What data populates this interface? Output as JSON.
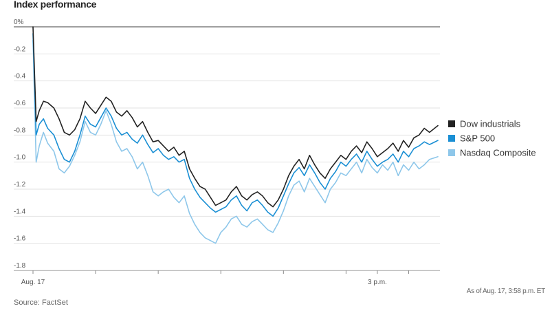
{
  "title": "Index performance",
  "source": "Source: FactSet",
  "as_of": "As of Aug. 17, 3:58 p.m. ET",
  "chart_data": {
    "type": "line",
    "title": "Index performance",
    "ylim": [
      -1.8,
      0
    ],
    "y_ticks": [
      0,
      -0.2,
      -0.4,
      -0.6,
      -0.8,
      -1.0,
      -1.2,
      -1.4,
      -1.6,
      -1.8
    ],
    "y_tick_labels": [
      "0%",
      "-0.2",
      "-0.4",
      "-0.6",
      "-0.8",
      "-1.0",
      "-1.2",
      "-1.4",
      "-1.6",
      "-1.8"
    ],
    "x_range": [
      "09:30",
      "16:00"
    ],
    "x_ticks": [
      "09:30",
      "10:30",
      "11:30",
      "12:30",
      "13:30",
      "14:30",
      "15:00",
      "15:30"
    ],
    "x_tick_labels": {
      "09:30": "Aug. 17",
      "15:00": "3 p.m."
    },
    "grid": true,
    "legend_position": "right",
    "series": [
      {
        "name": "Dow industrials",
        "color": "#222222",
        "x": [
          "09:30",
          "09:33",
          "09:36",
          "09:40",
          "09:44",
          "09:50",
          "09:55",
          "10:00",
          "10:05",
          "10:10",
          "10:15",
          "10:20",
          "10:25",
          "10:30",
          "10:35",
          "10:40",
          "10:45",
          "10:50",
          "10:55",
          "11:00",
          "11:05",
          "11:10",
          "11:15",
          "11:20",
          "11:25",
          "11:30",
          "11:35",
          "11:40",
          "11:45",
          "11:50",
          "11:55",
          "12:00",
          "12:05",
          "12:10",
          "12:15",
          "12:20",
          "12:25",
          "12:30",
          "12:35",
          "12:40",
          "12:45",
          "12:50",
          "12:55",
          "13:00",
          "13:05",
          "13:10",
          "13:15",
          "13:20",
          "13:25",
          "13:30",
          "13:35",
          "13:40",
          "13:45",
          "13:50",
          "13:55",
          "14:00",
          "14:05",
          "14:10",
          "14:15",
          "14:20",
          "14:25",
          "14:30",
          "14:35",
          "14:40",
          "14:45",
          "14:50",
          "14:55",
          "15:00",
          "15:05",
          "15:10",
          "15:15",
          "15:20",
          "15:25",
          "15:30",
          "15:35",
          "15:40",
          "15:45",
          "15:50",
          "15:58"
        ],
        "y": [
          0.0,
          -0.7,
          -0.62,
          -0.55,
          -0.56,
          -0.6,
          -0.68,
          -0.78,
          -0.8,
          -0.76,
          -0.68,
          -0.55,
          -0.6,
          -0.64,
          -0.58,
          -0.52,
          -0.55,
          -0.63,
          -0.66,
          -0.62,
          -0.67,
          -0.74,
          -0.7,
          -0.78,
          -0.85,
          -0.84,
          -0.88,
          -0.92,
          -0.89,
          -0.95,
          -0.92,
          -1.05,
          -1.12,
          -1.18,
          -1.2,
          -1.26,
          -1.32,
          -1.3,
          -1.28,
          -1.22,
          -1.18,
          -1.25,
          -1.28,
          -1.24,
          -1.22,
          -1.25,
          -1.3,
          -1.33,
          -1.28,
          -1.2,
          -1.1,
          -1.03,
          -0.98,
          -1.05,
          -0.95,
          -1.02,
          -1.08,
          -1.12,
          -1.05,
          -1.0,
          -0.95,
          -0.98,
          -0.92,
          -0.88,
          -0.93,
          -0.85,
          -0.9,
          -0.96,
          -0.93,
          -0.9,
          -0.86,
          -0.92,
          -0.84,
          -0.89,
          -0.82,
          -0.8,
          -0.75,
          -0.78,
          -0.73
        ]
      },
      {
        "name": "S&P 500",
        "color": "#1a8fd4",
        "x": [
          "09:30",
          "09:33",
          "09:36",
          "09:40",
          "09:44",
          "09:50",
          "09:55",
          "10:00",
          "10:05",
          "10:10",
          "10:15",
          "10:20",
          "10:25",
          "10:30",
          "10:35",
          "10:40",
          "10:45",
          "10:50",
          "10:55",
          "11:00",
          "11:05",
          "11:10",
          "11:15",
          "11:20",
          "11:25",
          "11:30",
          "11:35",
          "11:40",
          "11:45",
          "11:50",
          "11:55",
          "12:00",
          "12:05",
          "12:10",
          "12:15",
          "12:20",
          "12:25",
          "12:30",
          "12:35",
          "12:40",
          "12:45",
          "12:50",
          "12:55",
          "13:00",
          "13:05",
          "13:10",
          "13:15",
          "13:20",
          "13:25",
          "13:30",
          "13:35",
          "13:40",
          "13:45",
          "13:50",
          "13:55",
          "14:00",
          "14:05",
          "14:10",
          "14:15",
          "14:20",
          "14:25",
          "14:30",
          "14:35",
          "14:40",
          "14:45",
          "14:50",
          "14:55",
          "15:00",
          "15:05",
          "15:10",
          "15:15",
          "15:20",
          "15:25",
          "15:30",
          "15:35",
          "15:40",
          "15:45",
          "15:50",
          "15:58"
        ],
        "y": [
          -0.05,
          -0.8,
          -0.72,
          -0.68,
          -0.75,
          -0.8,
          -0.9,
          -0.98,
          -1.0,
          -0.92,
          -0.8,
          -0.66,
          -0.72,
          -0.74,
          -0.67,
          -0.6,
          -0.66,
          -0.75,
          -0.8,
          -0.78,
          -0.83,
          -0.86,
          -0.8,
          -0.87,
          -0.93,
          -0.9,
          -0.95,
          -0.98,
          -0.96,
          -1.0,
          -0.98,
          -1.12,
          -1.2,
          -1.26,
          -1.3,
          -1.34,
          -1.37,
          -1.35,
          -1.33,
          -1.28,
          -1.25,
          -1.32,
          -1.36,
          -1.3,
          -1.28,
          -1.32,
          -1.37,
          -1.4,
          -1.34,
          -1.25,
          -1.16,
          -1.08,
          -1.04,
          -1.1,
          -1.02,
          -1.08,
          -1.15,
          -1.2,
          -1.12,
          -1.07,
          -1.0,
          -1.03,
          -0.98,
          -0.94,
          -1.0,
          -0.92,
          -0.98,
          -1.03,
          -1.0,
          -0.98,
          -0.94,
          -1.0,
          -0.92,
          -0.96,
          -0.9,
          -0.88,
          -0.85,
          -0.87,
          -0.84
        ]
      },
      {
        "name": "Nasdaq Composite",
        "color": "#8ec7ea",
        "x": [
          "09:30",
          "09:33",
          "09:36",
          "09:40",
          "09:44",
          "09:50",
          "09:55",
          "10:00",
          "10:05",
          "10:10",
          "10:15",
          "10:20",
          "10:25",
          "10:30",
          "10:35",
          "10:40",
          "10:45",
          "10:50",
          "10:55",
          "11:00",
          "11:05",
          "11:10",
          "11:15",
          "11:20",
          "11:25",
          "11:30",
          "11:35",
          "11:40",
          "11:45",
          "11:50",
          "11:55",
          "12:00",
          "12:05",
          "12:10",
          "12:15",
          "12:20",
          "12:25",
          "12:30",
          "12:35",
          "12:40",
          "12:45",
          "12:50",
          "12:55",
          "13:00",
          "13:05",
          "13:10",
          "13:15",
          "13:20",
          "13:25",
          "13:30",
          "13:35",
          "13:40",
          "13:45",
          "13:50",
          "13:55",
          "14:00",
          "14:05",
          "14:10",
          "14:15",
          "14:20",
          "14:25",
          "14:30",
          "14:35",
          "14:40",
          "14:45",
          "14:50",
          "14:55",
          "15:00",
          "15:05",
          "15:10",
          "15:15",
          "15:20",
          "15:25",
          "15:30",
          "15:35",
          "15:40",
          "15:45",
          "15:50",
          "15:58"
        ],
        "y": [
          -0.1,
          -1.0,
          -0.88,
          -0.78,
          -0.86,
          -0.92,
          -1.05,
          -1.08,
          -1.03,
          -0.95,
          -0.85,
          -0.7,
          -0.78,
          -0.8,
          -0.72,
          -0.62,
          -0.72,
          -0.85,
          -0.92,
          -0.9,
          -0.96,
          -1.05,
          -1.0,
          -1.1,
          -1.22,
          -1.25,
          -1.22,
          -1.2,
          -1.26,
          -1.3,
          -1.25,
          -1.38,
          -1.46,
          -1.52,
          -1.56,
          -1.58,
          -1.6,
          -1.52,
          -1.48,
          -1.42,
          -1.4,
          -1.46,
          -1.48,
          -1.44,
          -1.42,
          -1.46,
          -1.5,
          -1.52,
          -1.45,
          -1.36,
          -1.25,
          -1.17,
          -1.14,
          -1.22,
          -1.12,
          -1.18,
          -1.24,
          -1.3,
          -1.2,
          -1.15,
          -1.08,
          -1.1,
          -1.05,
          -1.0,
          -1.08,
          -0.98,
          -1.04,
          -1.08,
          -1.02,
          -1.06,
          -1.0,
          -1.1,
          -1.02,
          -1.06,
          -1.0,
          -1.05,
          -1.02,
          -0.98,
          -0.96
        ]
      }
    ]
  }
}
